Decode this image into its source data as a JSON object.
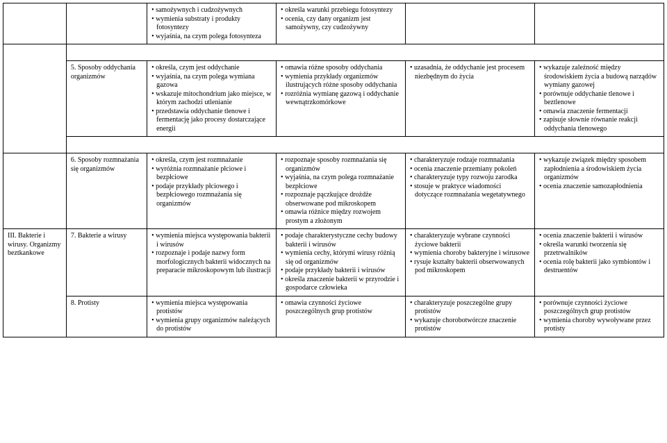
{
  "rows": {
    "r0": {
      "c3": [
        "samożywnych i cudzożywnych",
        "wymienia substraty i produkty fotosyntezy",
        "wyjaśnia, na czym polega fotosynteza"
      ],
      "c4": [
        "określa warunki przebiegu fotosyntezy",
        "ocenia, czy dany organizm jest samożywny, czy cudzożywny"
      ]
    },
    "r1": {
      "c2": "5. Sposoby oddychania organizmów",
      "c3": [
        "określa, czym jest oddychanie",
        "wyjaśnia, na czym polega wymiana gazowa",
        "wskazuje mitochondrium jako miejsce, w którym zachodzi utlenianie",
        "przedstawia oddychanie tlenowe i fermentację jako procesy dostarczające energii"
      ],
      "c4": [
        "omawia różne sposoby oddychania",
        "wymienia przykłady organizmów ilustrujących różne sposoby oddychania",
        "rozróżnia wymianę gazową i oddychanie wewnątrzkomórkowe"
      ],
      "c5": [
        "uzasadnia, że oddychanie jest procesem niezbędnym do życia"
      ],
      "c6": [
        "wykazuje zależność między środowiskiem życia a budową narządów wymiany gazowej",
        "porównuje oddychanie tlenowe i beztlenowe",
        "omawia znaczenie fermentacji",
        "zapisuje słownie równanie reakcji oddychania tlenowego"
      ]
    },
    "r2": {
      "c2": "6. Sposoby rozmnażania się organizmów",
      "c3": [
        "określa, czym jest rozmnażanie",
        "wyróżnia rozmnażanie płciowe i bezpłciowe",
        "podaje przykłady płciowego i bezpłciowego rozmnażania się organizmów"
      ],
      "c4": [
        "rozpoznaje sposoby rozmnażania się organizmów",
        "wyjaśnia, na czym polega rozmnażanie bezpłciowe",
        "rozpoznaje pączkujące drożdże obserwowane pod mikroskopem",
        "omawia różnice między rozwojem prostym a złożonym"
      ],
      "c5": [
        "charakteryzuje rodzaje rozmnażania",
        "ocenia znaczenie przemiany pokoleń",
        "charakteryzuje typy rozwoju zarodka",
        "stosuje w praktyce wiadomości dotyczące rozmnażania wegetatywnego"
      ],
      "c6": [
        "wykazuje związek między sposobem zapłodnienia a środowiskiem życia organizmów",
        "ocenia znaczenie samozapłodnienia"
      ]
    },
    "r3": {
      "c1": "III. Bakterie i wirusy. Organizmy beztkankowe",
      "c2": "7. Bakterie a wirusy",
      "c3": [
        "wymienia miejsca występowania bakterii i wirusów",
        "rozpoznaje i podaje nazwy form morfologicznych bakterii widocznych na preparacie mikroskopowym lub ilustracji"
      ],
      "c4": [
        "podaje charakterystyczne cechy budowy bakterii i wirusów",
        "wymienia cechy, którymi wirusy różnią się od organizmów",
        "podaje przykłady bakterii i wirusów",
        "określa znaczenie bakterii w przyrodzie i gospodarce człowieka"
      ],
      "c5": [
        "charakteryzuje wybrane czynności życiowe bakterii",
        "wymienia choroby bakteryjne i wirusowe",
        "rysuje kształty bakterii obserwowanych pod mikroskopem"
      ],
      "c6": [
        "ocenia znaczenie bakterii i wirusów",
        "określa warunki tworzenia się przetrwalników",
        "ocenia rolę bakterii jako symbiontów i destruentów"
      ]
    },
    "r4": {
      "c2": "8. Protisty",
      "c3": [
        "wymienia miejsca występowania protistów",
        "wymienia grupy organizmów należących do protistów"
      ],
      "c4": [
        "omawia czynności życiowe poszczególnych grup protistów"
      ],
      "c5": [
        "charakteryzuje poszczególne grupy protistów",
        "wykazuje chorobotwórcze znaczenie protistów"
      ],
      "c6": [
        "porównuje czynności życiowe poszczególnych grup protistów",
        "wymienia choroby wywoływane przez protisty"
      ]
    }
  }
}
